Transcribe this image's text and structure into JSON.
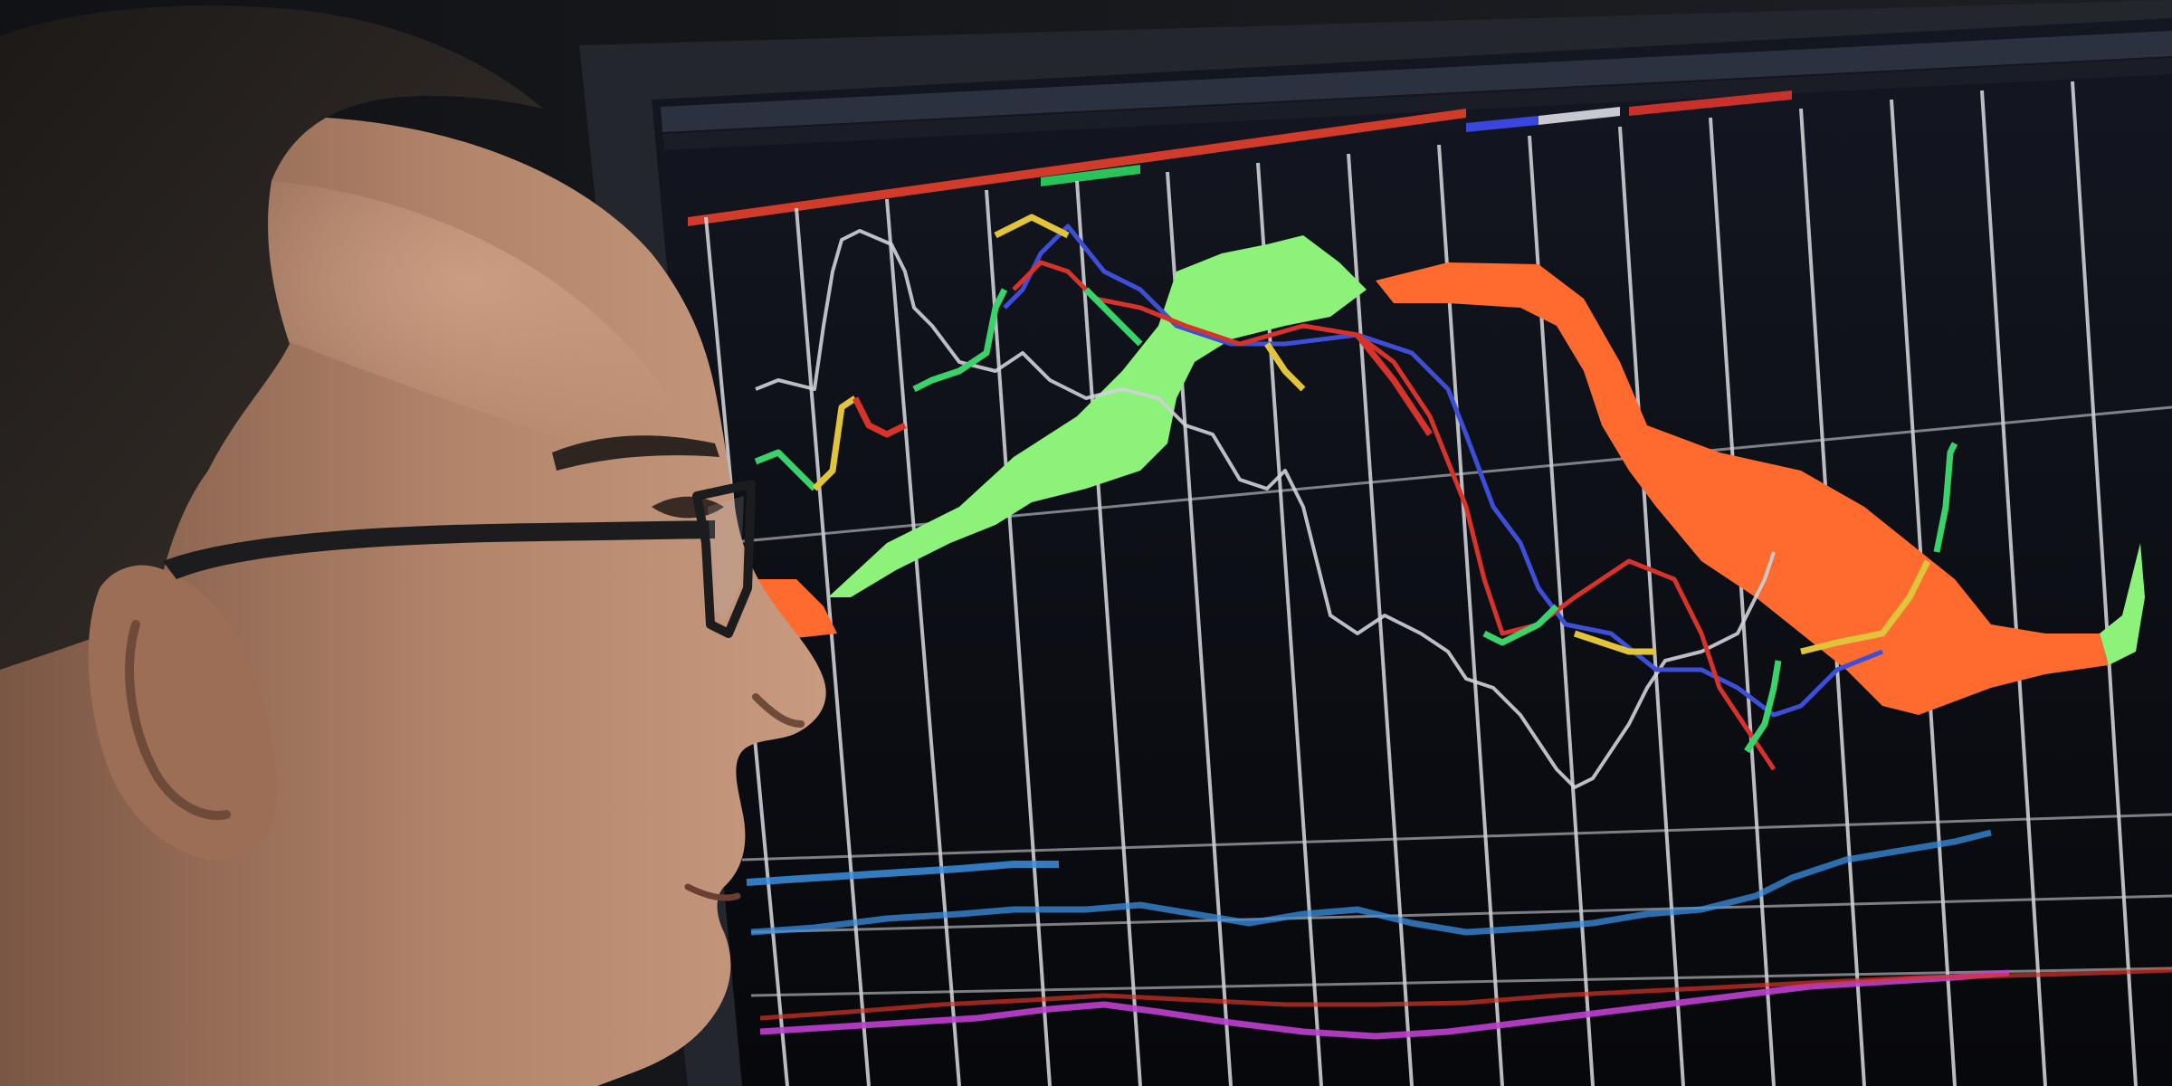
{
  "scene": {
    "kind": "photo",
    "subject": "man-with-glasses-profile",
    "background": "trading-monitor-with-ichimoku-style-chart"
  },
  "colors": {
    "room": "#14161a",
    "bezel": "#22252b",
    "screen_bg": "#0b0c10",
    "gridline": "#d9dbe0",
    "cloud_green": "#8cf27a",
    "cloud_orange": "#ff6a2e",
    "line_white": "#cfd2d8",
    "line_blue": "#3d4fd8",
    "line_red": "#d8332a",
    "lower_blue": "#3a8fe0",
    "lower_magenta": "#c03fd0",
    "skin": "#b88a6e",
    "hair": "#2a2522",
    "glasses": "#1c1c1e"
  }
}
